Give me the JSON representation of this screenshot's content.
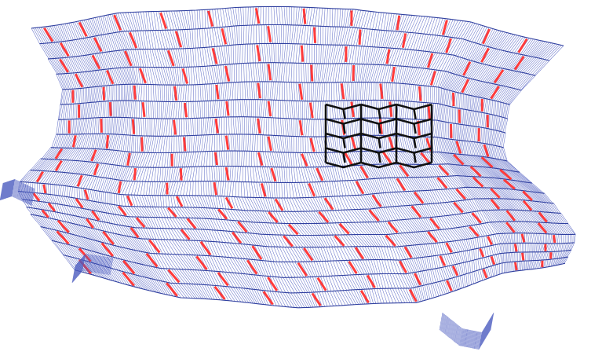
{
  "figure": {
    "colors": {
      "background": "#ffffff",
      "fiber": "#4b5bbf",
      "strand": "#2f3f9f",
      "marker": "#ff3b3b",
      "highlight": "#111111"
    },
    "grid": {
      "rows": 19,
      "columns": 12
    },
    "highlight_cells": {
      "rows": 4,
      "columns": 3
    }
  }
}
